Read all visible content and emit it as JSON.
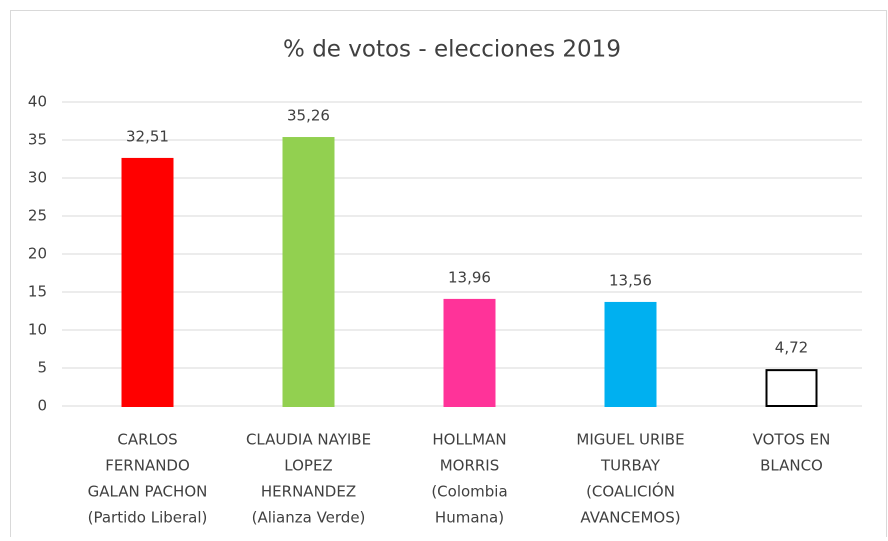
{
  "chart_data": {
    "type": "bar",
    "title": "% de votos - elecciones 2019",
    "categories": [
      [
        "CARLOS",
        "FERNANDO",
        "GALAN PACHON",
        "(Partido Liberal)"
      ],
      [
        "CLAUDIA NAYIBE",
        "LOPEZ",
        "HERNANDEZ",
        "(Alianza Verde)"
      ],
      [
        "HOLLMAN",
        "MORRIS",
        "(Colombia",
        "Humana)"
      ],
      [
        "MIGUEL URIBE",
        "TURBAY",
        "(COALICIÓN",
        "AVANCEMOS)"
      ],
      [
        "VOTOS EN",
        "BLANCO"
      ]
    ],
    "values": [
      32.51,
      35.26,
      13.96,
      13.56,
      4.72
    ],
    "value_labels": [
      "32,51",
      "35,26",
      "13,96",
      "13,56",
      "4,72"
    ],
    "colors": [
      "#ff0000",
      "#92d050",
      "#ff3399",
      "#00b0f0",
      "#ffffff"
    ],
    "edgecolors": [
      "#ff0000",
      "#92d050",
      "#ff3399",
      "#00b0f0",
      "#000000"
    ],
    "ylim": [
      0,
      40
    ],
    "yticks": [
      0,
      5,
      10,
      15,
      20,
      25,
      30,
      35,
      40
    ],
    "grid": true
  }
}
